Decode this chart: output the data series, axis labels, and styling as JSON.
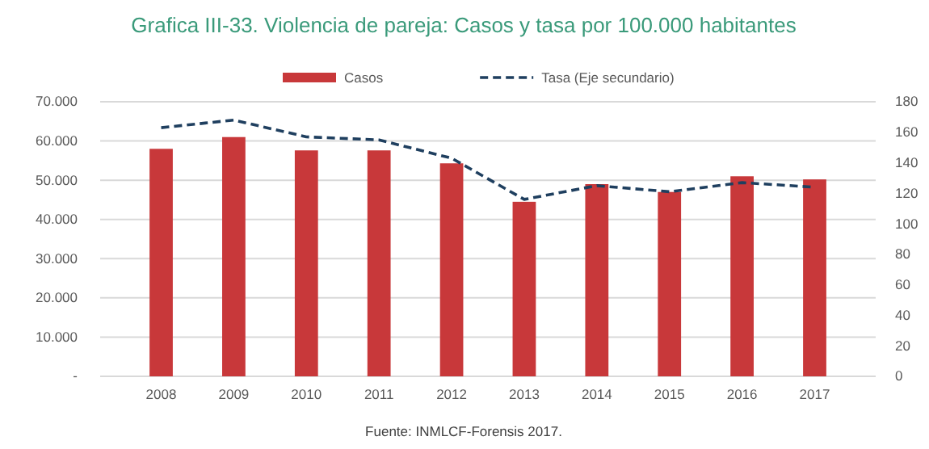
{
  "chart_data": {
    "type": "bar",
    "title": "Grafica III-33. Violencia de pareja: Casos y tasa por 100.000 habitantes",
    "categories": [
      "2008",
      "2009",
      "2010",
      "2011",
      "2012",
      "2013",
      "2014",
      "2015",
      "2016",
      "2017"
    ],
    "series": [
      {
        "name": "Casos",
        "color": "#c8383a",
        "values": [
          58000,
          61000,
          57600,
          57600,
          54300,
          44500,
          49000,
          47000,
          51000,
          50200
        ]
      },
      {
        "name": "Tasa (Eje secundario)",
        "type": "line",
        "axis": "y2",
        "color": "#1f3f5f",
        "line_style": "dashed",
        "values": [
          163,
          168,
          157,
          155,
          143,
          116,
          125,
          121,
          127,
          124
        ]
      }
    ],
    "ylim": [
      0,
      70000
    ],
    "yticks": [
      {
        "value": 0,
        "label": "-"
      },
      {
        "value": 10000,
        "label": "10.000"
      },
      {
        "value": 20000,
        "label": "20.000"
      },
      {
        "value": 30000,
        "label": "30.000"
      },
      {
        "value": 40000,
        "label": "40.000"
      },
      {
        "value": 50000,
        "label": "50.000"
      },
      {
        "value": 60000,
        "label": "60.000"
      },
      {
        "value": 70000,
        "label": "70.000"
      }
    ],
    "y2lim": [
      0,
      180
    ],
    "y2ticks": [
      0,
      20,
      40,
      60,
      80,
      100,
      120,
      140,
      160,
      180
    ],
    "grid": "y",
    "legend": "top",
    "annotations": [
      "Fuente: INMLCF-Forensis 2017."
    ]
  }
}
